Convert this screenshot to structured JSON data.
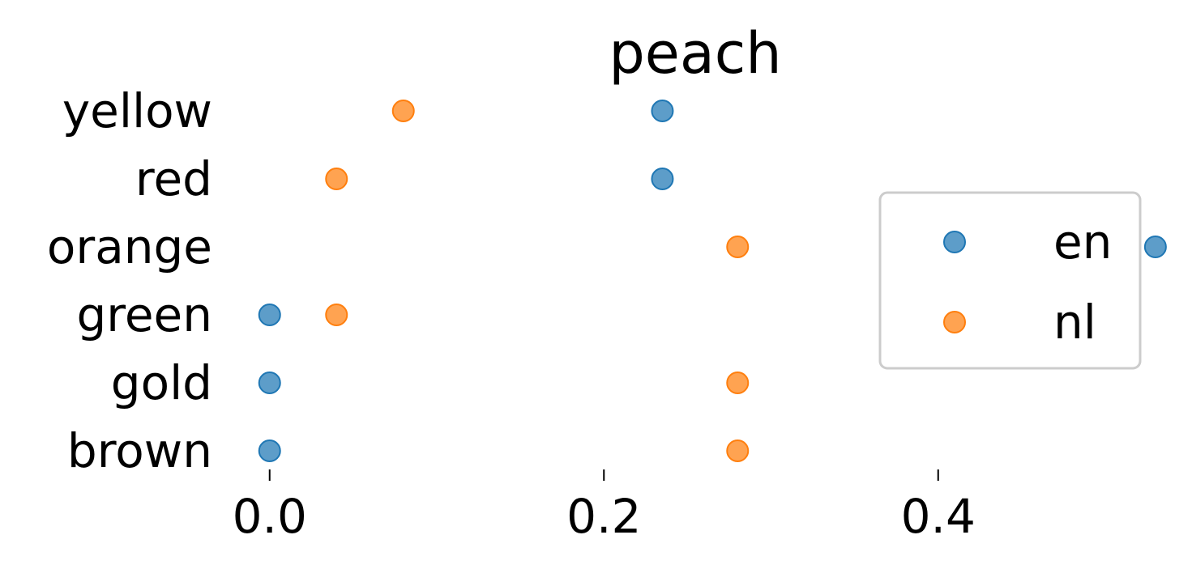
{
  "chart_data": {
    "type": "scatter",
    "title": "peach",
    "xlabel": "",
    "ylabel": "",
    "categories": [
      "yellow",
      "red",
      "orange",
      "green",
      "gold",
      "brown"
    ],
    "xlim": [
      -0.028,
      0.532
    ],
    "xticks": [
      0.0,
      0.2,
      0.4
    ],
    "xtick_labels": [
      "0.0",
      "0.2",
      "0.4"
    ],
    "grid": false,
    "legend_position": "right",
    "series": [
      {
        "name": "en",
        "color": "#1f77b4",
        "values": [
          0.235,
          0.235,
          0.53,
          0.0,
          0.0,
          0.0
        ]
      },
      {
        "name": "nl",
        "color": "#ff7f0e",
        "values": [
          0.08,
          0.04,
          0.28,
          0.04,
          0.28,
          0.28
        ]
      }
    ]
  }
}
